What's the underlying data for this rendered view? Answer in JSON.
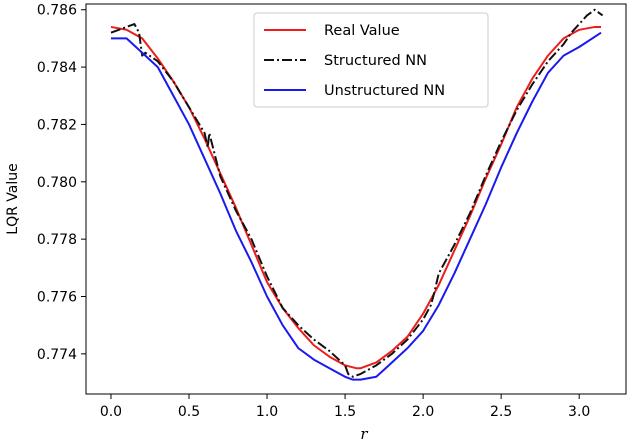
{
  "chart_data": {
    "type": "line",
    "title": "",
    "xlabel": "r",
    "ylabel": "LQR Value",
    "xlim": [
      -0.16,
      3.3
    ],
    "ylim": [
      0.7726,
      0.7862
    ],
    "xticks": [
      0.0,
      0.5,
      1.0,
      1.5,
      2.0,
      2.5,
      3.0
    ],
    "xtick_labels": [
      "0.0",
      "0.5",
      "1.0",
      "1.5",
      "2.0",
      "2.5",
      "3.0"
    ],
    "yticks": [
      0.774,
      0.776,
      0.778,
      0.78,
      0.782,
      0.784,
      0.786
    ],
    "ytick_labels": [
      "0.774",
      "0.776",
      "0.778",
      "0.780",
      "0.782",
      "0.784",
      "0.786"
    ],
    "grid": false,
    "legend": "top-center",
    "series": [
      {
        "name": "Real Value",
        "color": "#ee1c1c",
        "style": "solid",
        "x": [
          0.0,
          0.1,
          0.2,
          0.3,
          0.4,
          0.5,
          0.6,
          0.7,
          0.8,
          0.9,
          1.0,
          1.1,
          1.2,
          1.3,
          1.4,
          1.5,
          1.571,
          1.6,
          1.7,
          1.8,
          1.9,
          2.0,
          2.1,
          2.2,
          2.3,
          2.4,
          2.5,
          2.6,
          2.7,
          2.8,
          2.9,
          3.0,
          3.1,
          3.14
        ],
        "y": [
          0.7854,
          0.7853,
          0.785,
          0.7843,
          0.7835,
          0.7826,
          0.7815,
          0.7803,
          0.7791,
          0.7778,
          0.7765,
          0.7756,
          0.7749,
          0.7743,
          0.7739,
          0.7736,
          0.7735,
          0.7735,
          0.7737,
          0.7741,
          0.7746,
          0.7754,
          0.7764,
          0.7776,
          0.7788,
          0.7801,
          0.7813,
          0.7826,
          0.7836,
          0.7844,
          0.785,
          0.7853,
          0.7854,
          0.7854
        ]
      },
      {
        "name": "Structured NN",
        "color": "#111111",
        "style": "dashdot",
        "x": [
          0.0,
          0.05,
          0.1,
          0.15,
          0.18,
          0.2,
          0.22,
          0.3,
          0.4,
          0.5,
          0.6,
          0.62,
          0.63,
          0.7,
          0.8,
          0.9,
          1.0,
          1.1,
          1.2,
          1.3,
          1.4,
          1.5,
          1.52,
          1.55,
          1.6,
          1.7,
          1.8,
          1.9,
          2.0,
          2.05,
          2.07,
          2.1,
          2.2,
          2.3,
          2.4,
          2.5,
          2.6,
          2.7,
          2.8,
          2.9,
          2.95,
          3.0,
          3.05,
          3.1,
          3.15
        ],
        "y": [
          0.7852,
          0.7853,
          0.7854,
          0.7855,
          0.7852,
          0.7844,
          0.7845,
          0.7842,
          0.7835,
          0.7826,
          0.7817,
          0.7812,
          0.7817,
          0.7802,
          0.779,
          0.778,
          0.7767,
          0.7756,
          0.775,
          0.7745,
          0.7741,
          0.7736,
          0.7733,
          0.7732,
          0.7733,
          0.7736,
          0.774,
          0.7745,
          0.7752,
          0.7757,
          0.7761,
          0.7768,
          0.7778,
          0.7789,
          0.7802,
          0.7814,
          0.7825,
          0.7834,
          0.7842,
          0.7848,
          0.7852,
          0.7855,
          0.7858,
          0.786,
          0.7858
        ]
      },
      {
        "name": "Unstructured NN",
        "color": "#1a1aee",
        "style": "solid",
        "x": [
          0.0,
          0.1,
          0.2,
          0.3,
          0.4,
          0.5,
          0.6,
          0.7,
          0.8,
          0.9,
          1.0,
          1.1,
          1.2,
          1.25,
          1.3,
          1.4,
          1.5,
          1.55,
          1.6,
          1.7,
          1.8,
          1.9,
          2.0,
          2.1,
          2.2,
          2.3,
          2.4,
          2.5,
          2.6,
          2.7,
          2.8,
          2.9,
          3.0,
          3.14
        ],
        "y": [
          0.785,
          0.785,
          0.7845,
          0.784,
          0.783,
          0.782,
          0.7808,
          0.7796,
          0.7783,
          0.7772,
          0.776,
          0.775,
          0.7742,
          0.774,
          0.7738,
          0.7735,
          0.7732,
          0.7731,
          0.7731,
          0.7732,
          0.7737,
          0.7742,
          0.7748,
          0.7757,
          0.7768,
          0.778,
          0.7792,
          0.7805,
          0.7817,
          0.7828,
          0.7838,
          0.7844,
          0.7847,
          0.7852
        ]
      }
    ]
  }
}
